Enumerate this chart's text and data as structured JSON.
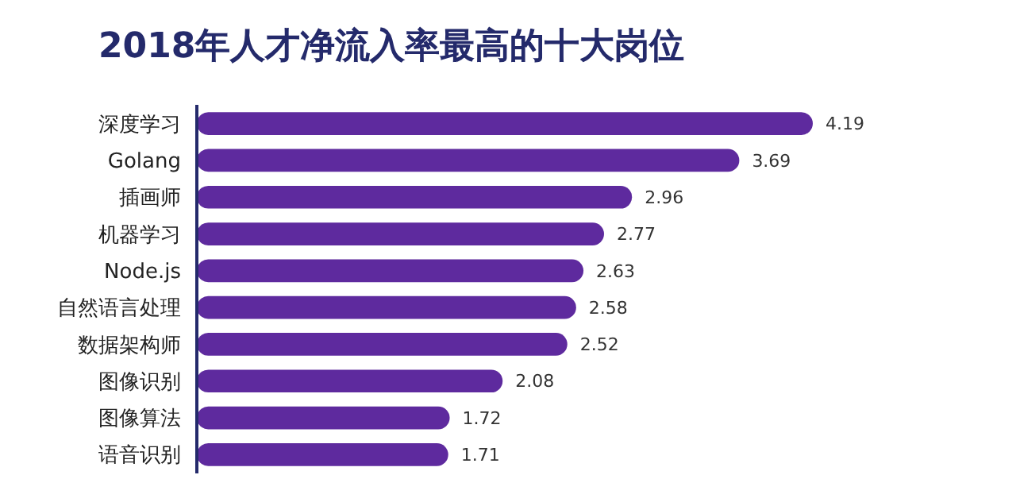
{
  "chart_data": {
    "type": "bar",
    "orientation": "horizontal",
    "title": "2018年人才净流入率最高的十大岗位",
    "categories": [
      "深度学习",
      "Golang",
      "插画师",
      "机器学习",
      "Node.js",
      "自然语言处理",
      "数据架构师",
      "图像识别",
      "图像算法",
      "语音识别"
    ],
    "values": [
      4.19,
      3.69,
      2.96,
      2.77,
      2.63,
      2.58,
      2.52,
      2.08,
      1.72,
      1.71
    ],
    "color": "#5e2a9e",
    "data_labels": true
  }
}
